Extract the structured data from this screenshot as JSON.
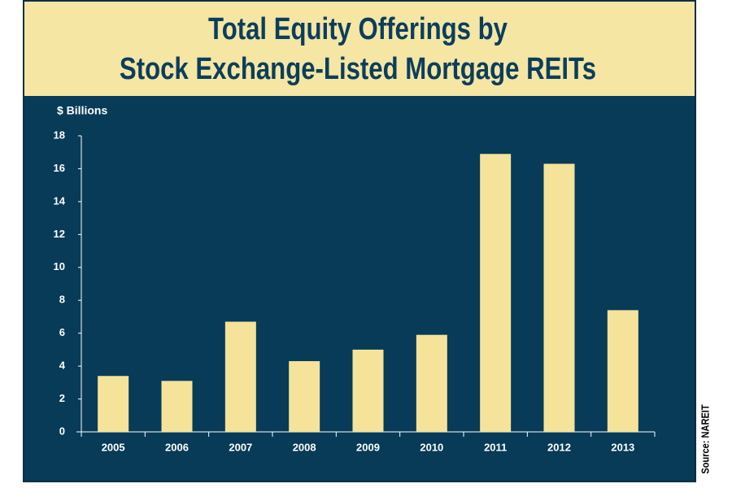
{
  "chart_data": {
    "type": "bar",
    "title": [
      "Total Equity Offerings by",
      "Stock Exchange-Listed Mortgage REITs"
    ],
    "y_label": "$ Billions",
    "source": "Source: NAREIT",
    "categories": [
      "2005",
      "2006",
      "2007",
      "2008",
      "2009",
      "2010",
      "2011",
      "2012",
      "2013"
    ],
    "values": [
      3.4,
      3.1,
      6.7,
      4.3,
      5.0,
      5.9,
      16.9,
      16.3,
      7.4
    ],
    "color": "#f5e39a",
    "ylim": [
      0,
      18
    ],
    "yticks": [
      0,
      2,
      4,
      6,
      8,
      10,
      12,
      14,
      16,
      18
    ]
  }
}
